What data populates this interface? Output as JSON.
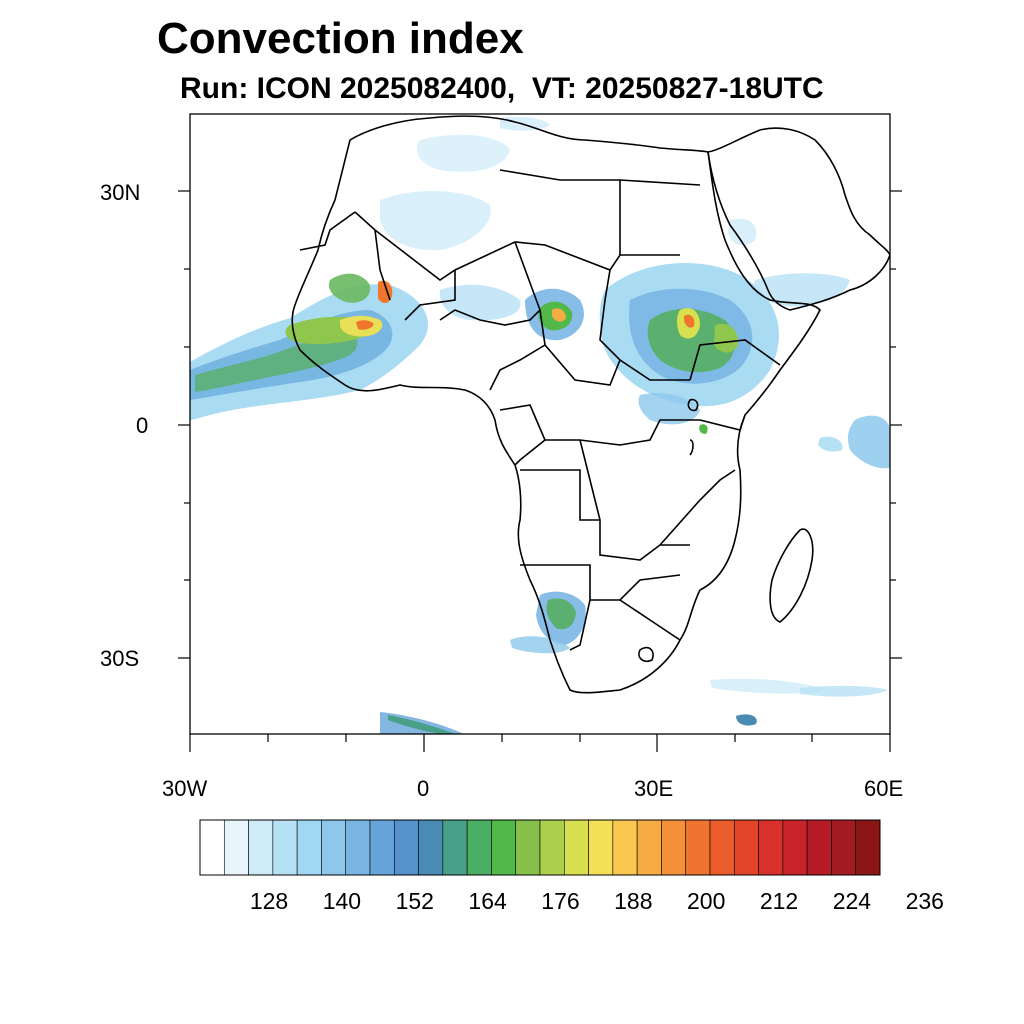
{
  "title": "Convection index",
  "subtitle": "Run: ICON 2025082400,  VT: 20250827-18UTC",
  "lat_labels": [
    "30N",
    "0",
    "30S"
  ],
  "lon_labels": [
    "30W",
    "0",
    "30E",
    "60E"
  ],
  "colorbar": {
    "labels": [
      "128",
      "140",
      "152",
      "164",
      "176",
      "188",
      "200",
      "212",
      "224",
      "236"
    ],
    "colors": [
      "#ffffff",
      "#e8f5fc",
      "#cfebf8",
      "#b6e1f5",
      "#a0d7f2",
      "#8dc8ec",
      "#7ab6e4",
      "#66a3da",
      "#5592cc",
      "#4a8bb4",
      "#49a088",
      "#4aae64",
      "#52b84a",
      "#86c04a",
      "#acd04c",
      "#d8e050",
      "#f4e058",
      "#f8c850",
      "#f6ac44",
      "#f49038",
      "#f07430",
      "#ea5c2c",
      "#e24628",
      "#d8302a",
      "#c8222a",
      "#b61c26",
      "#a21a22",
      "#8c1616"
    ]
  },
  "icons": {
    "map": "africa-map"
  }
}
